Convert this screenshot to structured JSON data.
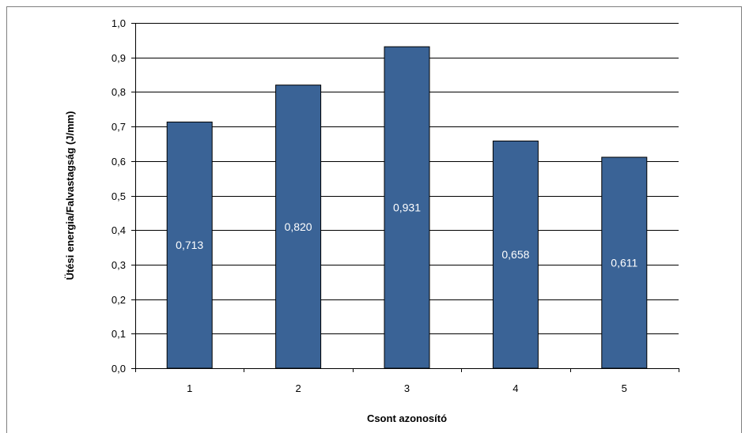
{
  "chart_data": {
    "type": "bar",
    "title": "",
    "xlabel": "Csont azonosító",
    "ylabel": "Ütési energia/Falvastagság (J/mm)",
    "categories": [
      "1",
      "2",
      "3",
      "4",
      "5"
    ],
    "values": [
      0.713,
      0.82,
      0.931,
      0.658,
      0.611
    ],
    "data_labels": [
      "0,713",
      "0,820",
      "0,931",
      "0,658",
      "0,611"
    ],
    "ylim": [
      0,
      1.0
    ],
    "yticks": [
      0.0,
      0.1,
      0.2,
      0.3,
      0.4,
      0.5,
      0.6,
      0.7,
      0.8,
      0.9,
      1.0
    ],
    "ytick_labels": [
      "0,0",
      "0,1",
      "0,2",
      "0,3",
      "0,4",
      "0,5",
      "0,6",
      "0,7",
      "0,8",
      "0,9",
      "1,0"
    ],
    "grid": true,
    "legend": "none",
    "colors": {
      "bar": "#3a6396",
      "bar_edge": "#000000",
      "gridline": "#000000",
      "label": "#ffffff"
    }
  }
}
